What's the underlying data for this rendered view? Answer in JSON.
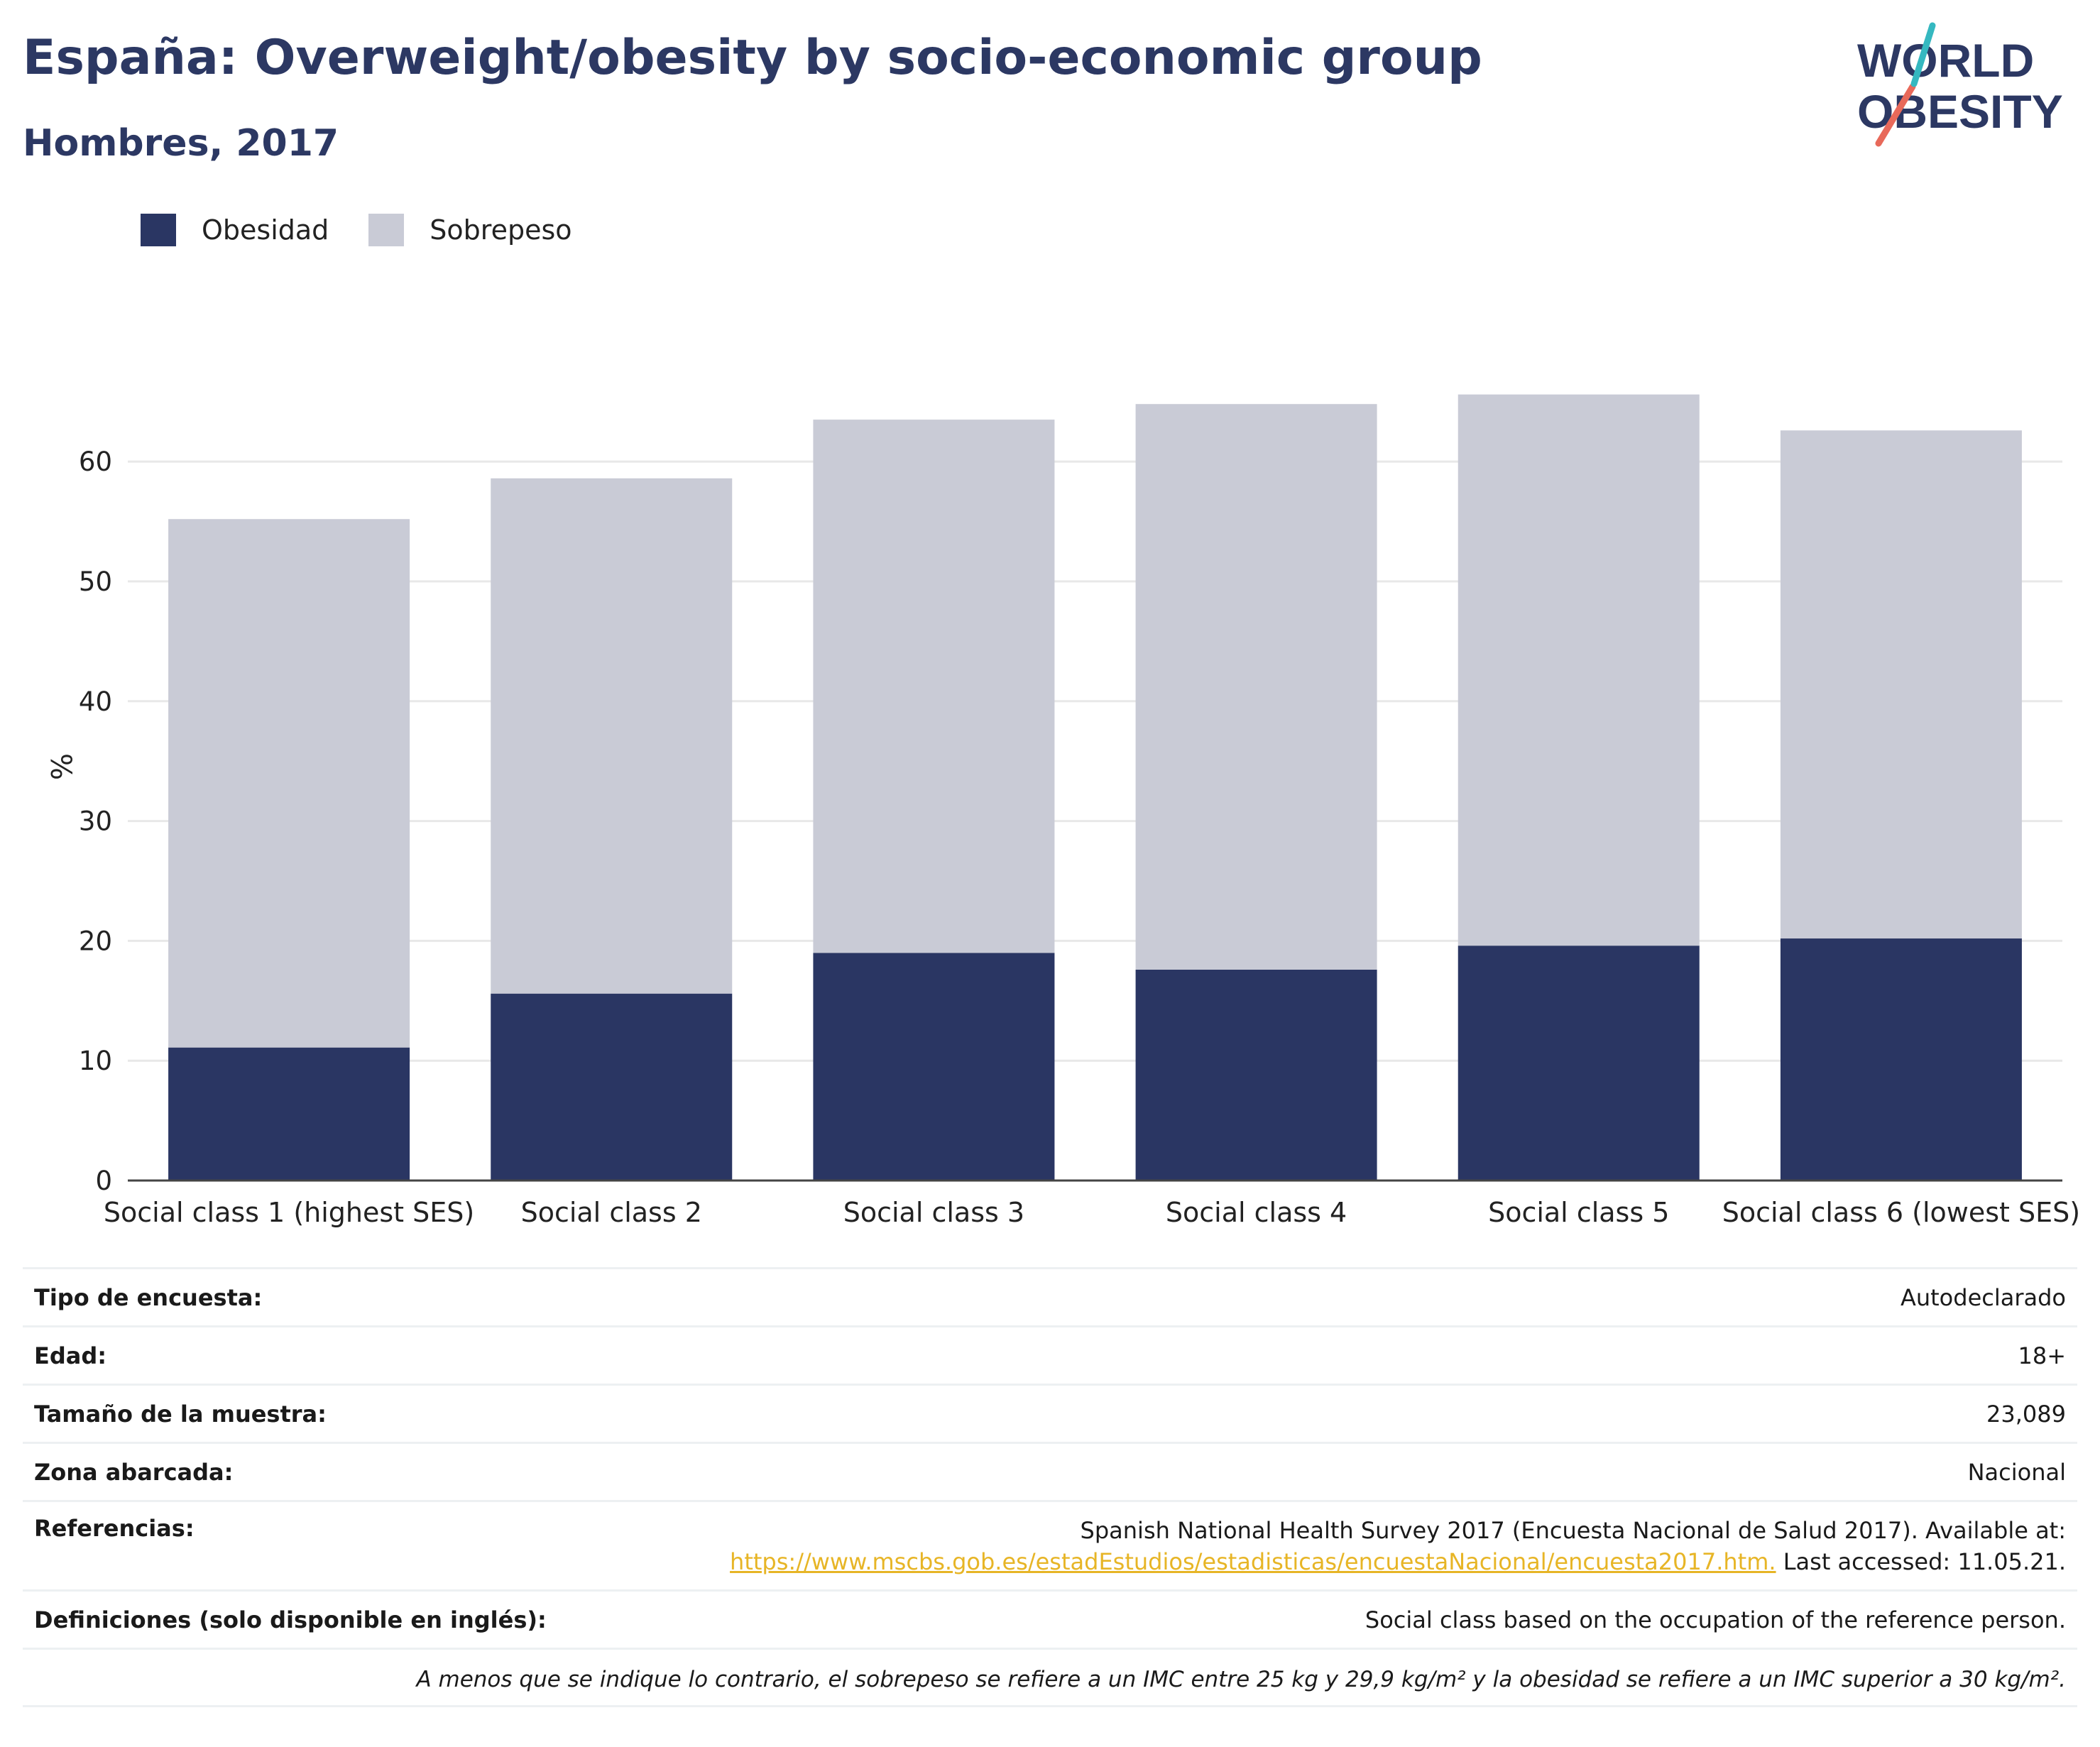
{
  "header": {
    "title": "España: Overweight/obesity by socio-economic group",
    "subtitle": "Hombres, 2017"
  },
  "logo": {
    "line1": "WORLD",
    "line2": "OBESITY"
  },
  "colors": {
    "obesidad": "#2a3663",
    "sobrepeso": "#c9cbd6",
    "title": "#2c3863",
    "link": "#e7b526"
  },
  "chart_data": {
    "type": "bar",
    "stacked": true,
    "categories": [
      "Social class 1 (highest SES)",
      "Social class 2",
      "Social class 3",
      "Social class 4",
      "Social class 5",
      "Social class 6 (lowest SES)"
    ],
    "series": [
      {
        "name": "Obesidad",
        "values": [
          11.1,
          15.6,
          19.0,
          17.6,
          19.6,
          20.2
        ]
      },
      {
        "name": "Sobrepeso",
        "values": [
          44.1,
          43.0,
          44.5,
          47.2,
          46.0,
          42.4
        ]
      }
    ],
    "ylabel": "%",
    "ylim": [
      0,
      70
    ],
    "yticks": [
      0,
      10,
      20,
      30,
      40,
      50,
      60
    ],
    "grid": true,
    "legend_position": "top-left"
  },
  "info": {
    "rows": [
      {
        "key": "Tipo de encuesta:",
        "value": "Autodeclarado"
      },
      {
        "key": "Edad:",
        "value": "18+"
      },
      {
        "key": "Tamaño de la muestra:",
        "value": "23,089"
      },
      {
        "key": "Zona abarcada:",
        "value": "Nacional"
      }
    ],
    "references": {
      "key": "Referencias:",
      "line1": "Spanish National Health Survey 2017 (Encuesta Nacional de Salud 2017). Available at:",
      "link": "https://www.mscbs.gob.es/estadEstudios/estadisticas/encuestaNacional/encuesta2017.htm.",
      "after_link": " Last accessed: 11.05.21."
    },
    "definitions": {
      "key": "Definiciones (solo disponible en inglés):",
      "value": "Social class based on the occupation of the reference person."
    },
    "footnote": "A menos que se indique lo contrario, el sobrepeso se refiere a un IMC entre 25 kg y 29,9 kg/m² y la obesidad se refiere a un IMC superior a 30 kg/m²."
  }
}
